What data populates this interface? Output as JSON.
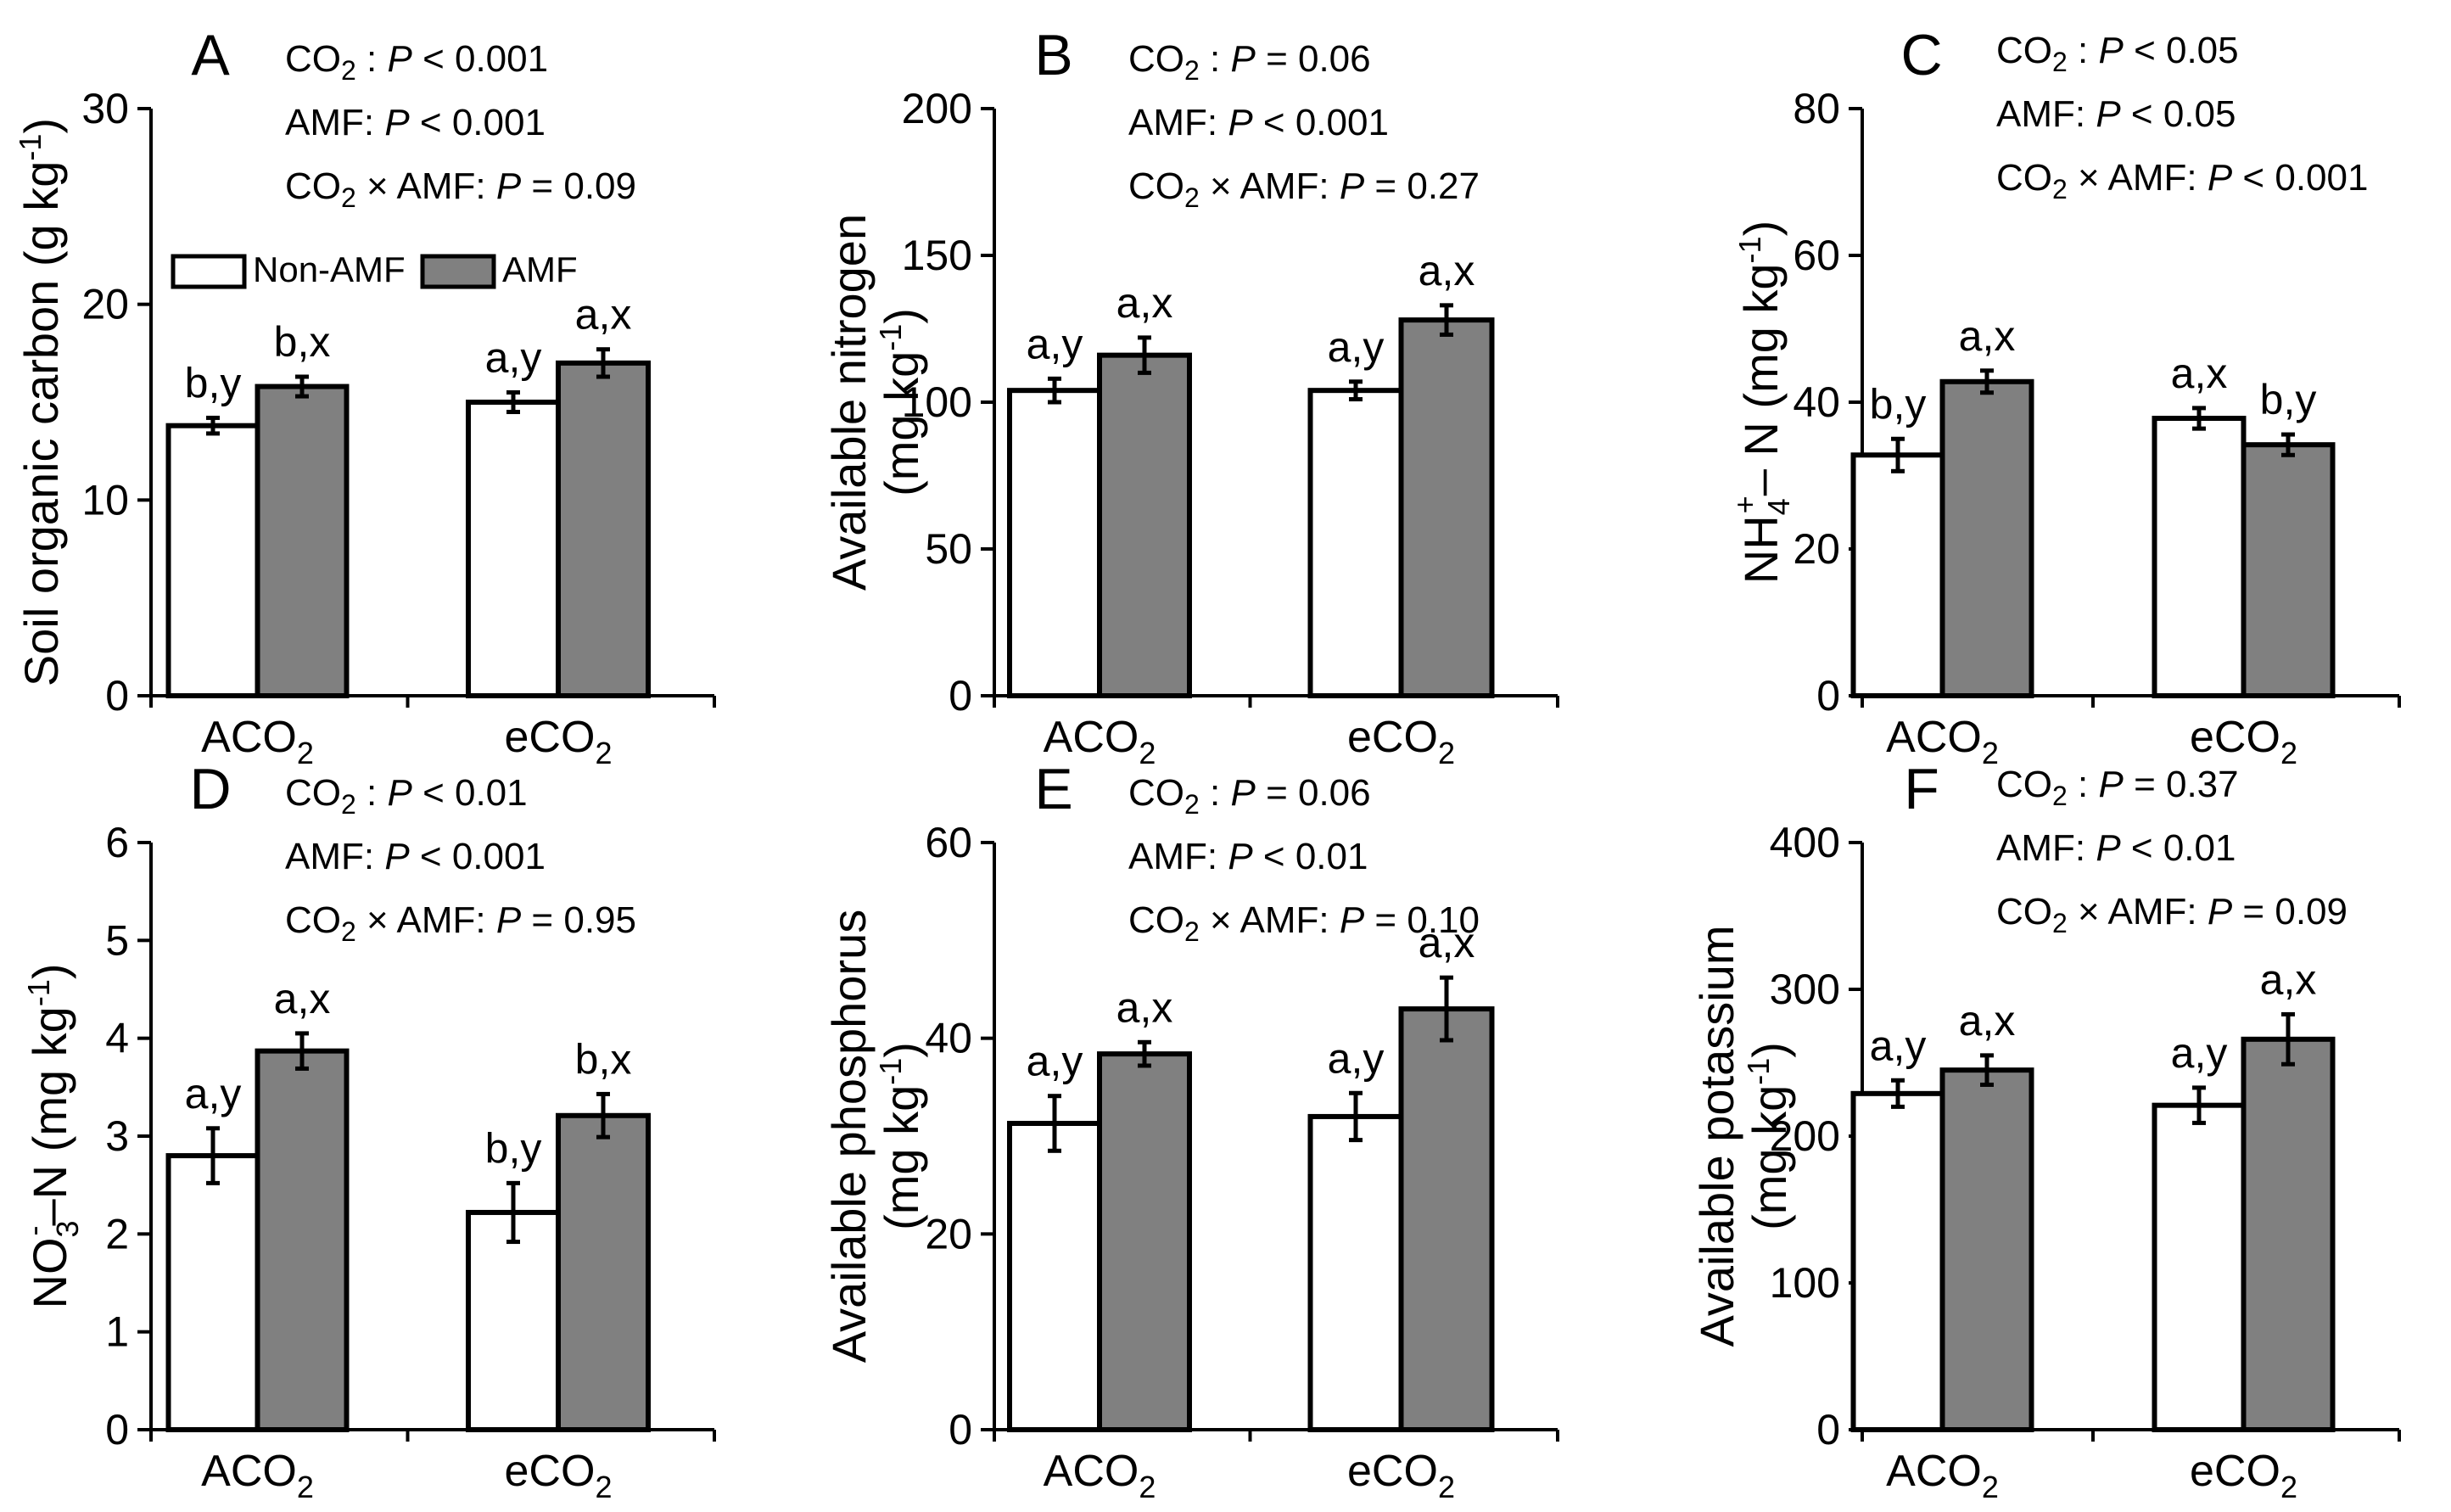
{
  "colors": {
    "non_amf": "#ffffff",
    "amf": "#808080",
    "stroke": "#000000"
  },
  "chart_data": [
    {
      "panel": "A",
      "type": "bar",
      "ylabel_main": "Soil organic carbon (g kg",
      "ylabel_sup": "-1",
      "ylabel_tail": ")",
      "ylim": [
        0,
        30
      ],
      "yticks": [
        0,
        10,
        20,
        30
      ],
      "categories": [
        {
          "main": "ACO",
          "sub": "2"
        },
        {
          "main": "eCO",
          "sub": "2"
        }
      ],
      "series": [
        {
          "name": "Non-AMF",
          "values": [
            13.8,
            15.0
          ],
          "errors": [
            0.4,
            0.5
          ],
          "letters": [
            "b,y",
            "a,y"
          ]
        },
        {
          "name": "AMF",
          "values": [
            15.8,
            17.0
          ],
          "errors": [
            0.5,
            0.7
          ],
          "letters": [
            "b,x",
            "a,x"
          ]
        }
      ],
      "stats": [
        {
          "pre": "CO",
          "sub": "2",
          "post": " :  ",
          "p": "P",
          "val": " < 0.001"
        },
        {
          "pre": "AMF:  ",
          "sub": "",
          "post": "",
          "p": "P",
          "val": " < 0.001"
        },
        {
          "pre": "CO",
          "sub": "2",
          "post": " × AMF:  ",
          "p": "P",
          "val": " = 0.09"
        }
      ],
      "legend": true
    },
    {
      "panel": "B",
      "type": "bar",
      "ylabel_line1": "Available nitrogen",
      "ylabel_main": "(mg kg",
      "ylabel_sup": "-1",
      "ylabel_tail": ")",
      "ylim": [
        0,
        200
      ],
      "yticks": [
        0,
        50,
        100,
        150,
        200
      ],
      "categories": [
        {
          "main": "ACO",
          "sub": "2"
        },
        {
          "main": "eCO",
          "sub": "2"
        }
      ],
      "series": [
        {
          "name": "Non-AMF",
          "values": [
            104,
            104
          ],
          "errors": [
            4,
            3
          ],
          "letters": [
            "a,y",
            "a,y"
          ]
        },
        {
          "name": "AMF",
          "values": [
            116,
            128
          ],
          "errors": [
            6,
            5
          ],
          "letters": [
            "a,x",
            "a,x"
          ]
        }
      ],
      "stats": [
        {
          "pre": "CO",
          "sub": "2",
          "post": " :  ",
          "p": "P",
          "val": " = 0.06"
        },
        {
          "pre": "AMF:  ",
          "sub": "",
          "post": "",
          "p": "P",
          "val": " < 0.001"
        },
        {
          "pre": "CO",
          "sub": "2",
          "post": " × AMF:  ",
          "p": "P",
          "val": " = 0.27"
        }
      ]
    },
    {
      "panel": "C",
      "type": "bar",
      "ylabel_nh": "NH",
      "ylabel_nh_sub": "4",
      "ylabel_nh_sup": "+",
      "ylabel_main": "– N (mg kg",
      "ylabel_sup": "-1",
      "ylabel_tail": ")",
      "ylim": [
        0,
        80
      ],
      "yticks": [
        0,
        20,
        40,
        60,
        80
      ],
      "categories": [
        {
          "main": "ACO",
          "sub": "2"
        },
        {
          "main": "eCO",
          "sub": "2"
        }
      ],
      "series": [
        {
          "name": "Non-AMF",
          "values": [
            32.8,
            37.8
          ],
          "errors": [
            2.2,
            1.4
          ],
          "letters": [
            "b,y",
            "a,x"
          ]
        },
        {
          "name": "AMF",
          "values": [
            42.8,
            34.2
          ],
          "errors": [
            1.5,
            1.4
          ],
          "letters": [
            "a,x",
            "b,y"
          ]
        }
      ],
      "stats": [
        {
          "pre": "CO",
          "sub": "2",
          "post": " :  ",
          "p": "P",
          "val": " < 0.05"
        },
        {
          "pre": "AMF:  ",
          "sub": "",
          "post": "",
          "p": "P",
          "val": " < 0.05"
        },
        {
          "pre": "CO",
          "sub": "2",
          "post": " × AMF:  ",
          "p": "P",
          "val": " < 0.001"
        }
      ]
    },
    {
      "panel": "D",
      "type": "bar",
      "ylabel_nh": "NO",
      "ylabel_nh_sub": "3",
      "ylabel_nh_sup": "-",
      "ylabel_main": "–N (mg kg",
      "ylabel_sup": "-1",
      "ylabel_tail": ")",
      "ylim": [
        0,
        6
      ],
      "yticks": [
        0,
        1,
        2,
        3,
        4,
        5,
        6
      ],
      "categories": [
        {
          "main": "ACO",
          "sub": "2"
        },
        {
          "main": "eCO",
          "sub": "2"
        }
      ],
      "series": [
        {
          "name": "Non-AMF",
          "values": [
            2.8,
            2.22
          ],
          "errors": [
            0.28,
            0.3
          ],
          "letters": [
            "a,y",
            "b,y"
          ]
        },
        {
          "name": "AMF",
          "values": [
            3.87,
            3.21
          ],
          "errors": [
            0.18,
            0.22
          ],
          "letters": [
            "a,x",
            "b,x"
          ]
        }
      ],
      "stats": [
        {
          "pre": "CO",
          "sub": "2",
          "post": " :  ",
          "p": "P",
          "val": " < 0.01"
        },
        {
          "pre": "AMF:  ",
          "sub": "",
          "post": "",
          "p": "P",
          "val": " < 0.001"
        },
        {
          "pre": "CO",
          "sub": "2",
          "post": " × AMF:  ",
          "p": "P",
          "val": " = 0.95"
        }
      ]
    },
    {
      "panel": "E",
      "type": "bar",
      "ylabel_line1": "Available phosphorus",
      "ylabel_main": "(mg kg",
      "ylabel_sup": "-1",
      "ylabel_tail": ")",
      "ylim": [
        0,
        60
      ],
      "yticks": [
        0,
        20,
        40,
        60
      ],
      "categories": [
        {
          "main": "ACO",
          "sub": "2"
        },
        {
          "main": "eCO",
          "sub": "2"
        }
      ],
      "series": [
        {
          "name": "Non-AMF",
          "values": [
            31.3,
            32.0
          ],
          "errors": [
            2.8,
            2.4
          ],
          "letters": [
            "a,y",
            "a,y"
          ]
        },
        {
          "name": "AMF",
          "values": [
            38.4,
            43.0
          ],
          "errors": [
            1.2,
            3.2
          ],
          "letters": [
            "a,x",
            "a,x"
          ]
        }
      ],
      "stats": [
        {
          "pre": "CO",
          "sub": "2",
          "post": " :  ",
          "p": "P",
          "val": " = 0.06"
        },
        {
          "pre": "AMF:  ",
          "sub": "",
          "post": "",
          "p": "P",
          "val": " < 0.01"
        },
        {
          "pre": "CO",
          "sub": "2",
          "post": " × AMF:  ",
          "p": "P",
          "val": " = 0.10"
        }
      ]
    },
    {
      "panel": "F",
      "type": "bar",
      "ylabel_line1": "Available potassium",
      "ylabel_main": "(mg kg",
      "ylabel_sup": "-1",
      "ylabel_tail": ")",
      "ylim": [
        0,
        400
      ],
      "yticks": [
        0,
        100,
        200,
        300,
        400
      ],
      "categories": [
        {
          "main": "ACO",
          "sub": "2"
        },
        {
          "main": "eCO",
          "sub": "2"
        }
      ],
      "series": [
        {
          "name": "Non-AMF",
          "values": [
            229,
            221
          ],
          "errors": [
            9,
            12
          ],
          "letters": [
            "a,y",
            "a,y"
          ]
        },
        {
          "name": "AMF",
          "values": [
            245,
            266
          ],
          "errors": [
            10,
            17
          ],
          "letters": [
            "a,x",
            "a,x"
          ]
        }
      ],
      "stats": [
        {
          "pre": "CO",
          "sub": "2",
          "post": " :  ",
          "p": "P",
          "val": " = 0.37"
        },
        {
          "pre": "AMF:  ",
          "sub": "",
          "post": "",
          "p": "P",
          "val": " < 0.01"
        },
        {
          "pre": "CO",
          "sub": "2",
          "post": " × AMF:  ",
          "p": "P",
          "val": " = 0.09"
        }
      ]
    }
  ]
}
